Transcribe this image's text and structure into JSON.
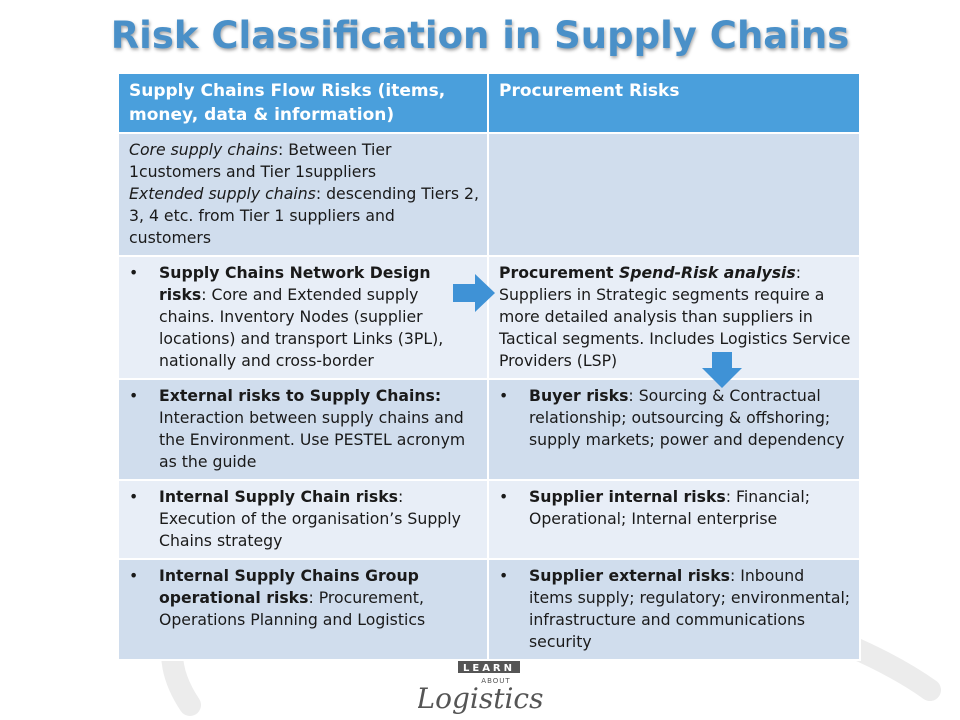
{
  "title": "Risk Classification in Supply Chains",
  "headers": {
    "col1": "Supply Chains Flow Risks (items, money, data & information)",
    "col2": "Procurement Risks"
  },
  "bullet": "•",
  "rows": [
    {
      "left": {
        "core_label": "Core supply chains",
        "core_text": ": Between Tier 1customers and Tier 1suppliers",
        "ext_label": "Extended supply chains",
        "ext_text": ": descending Tiers 2, 3, 4 etc. from Tier 1 suppliers and customers"
      },
      "right": {}
    },
    {
      "left": {
        "bold": "Supply Chains Network Design risks",
        "text": ": Core and Extended supply chains. Inventory Nodes (supplier locations) and transport Links (3PL), nationally and cross-border"
      },
      "right": {
        "bold": "Procurement ",
        "bold_italic": "Spend-Risk analysis",
        "text": ": Suppliers in Strategic segments require a more detailed analysis than suppliers in Tactical segments. Includes Logistics Service Providers (LSP)"
      }
    },
    {
      "left": {
        "bold": "External risks to Supply Chains:",
        "text": " Interaction between supply chains and the Environment. Use PESTEL acronym as the guide"
      },
      "right": {
        "bold": "Buyer risks",
        "text": ": Sourcing & Contractual relationship; outsourcing & offshoring; supply markets; power and dependency"
      }
    },
    {
      "left": {
        "bold": "Internal Supply Chain risks",
        "text": ": Execution of the organisation’s Supply Chains strategy"
      },
      "right": {
        "bold": "Supplier internal risks",
        "text": ": Financial; Operational; Internal enterprise"
      }
    },
    {
      "left": {
        "bold": "Internal Supply Chains Group operational risks",
        "text": ": Procurement, Operations Planning and Logistics"
      },
      "right": {
        "bold": "Supplier external risks",
        "text": ": Inbound items supply; regulatory; environmental; infrastructure and communications security"
      }
    }
  ],
  "logo": {
    "top": "LEARN",
    "middle": "ABOUT",
    "bottom": "Logistics"
  },
  "colors": {
    "title": "#4a90c8",
    "header_bg": "#4a9fdc",
    "row_light": "#e8eef7",
    "row_dark": "#d0dded",
    "arrow": "#3f92d6"
  }
}
